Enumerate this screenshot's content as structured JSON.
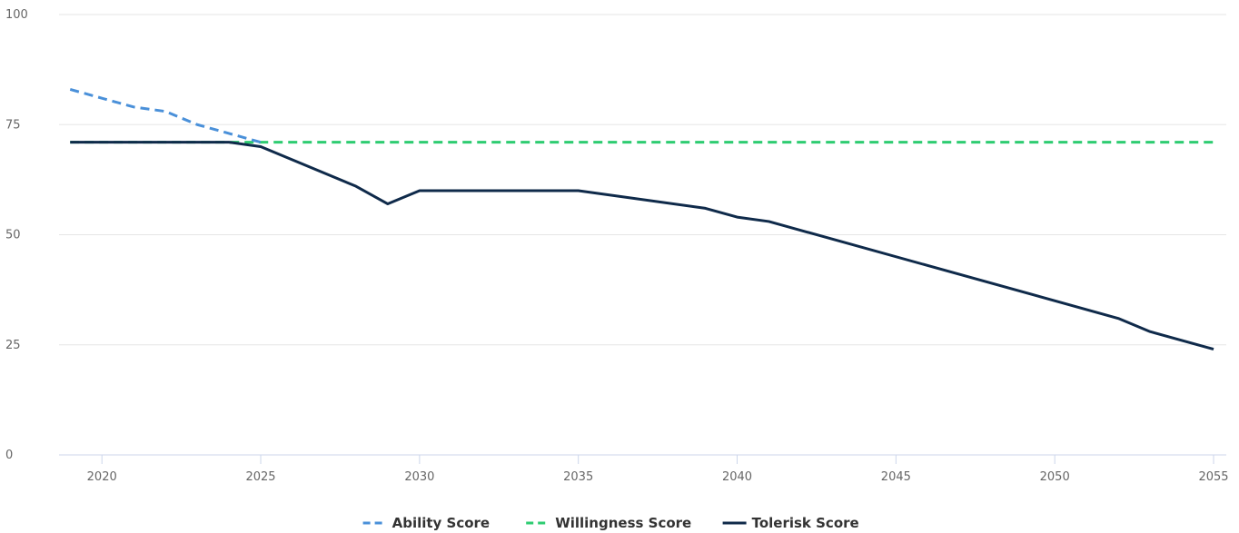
{
  "chart_data": {
    "type": "line",
    "x": [
      2019,
      2020,
      2021,
      2022,
      2023,
      2024,
      2025,
      2028,
      2029,
      2030,
      2035,
      2039,
      2040,
      2041,
      2052,
      2053,
      2055
    ],
    "series": [
      {
        "name": "Ability Score",
        "color": "#4a90d9",
        "dash": "dashed",
        "values": [
          83,
          81,
          79,
          78,
          75,
          73,
          71,
          null,
          null,
          null,
          null,
          null,
          null,
          null,
          null,
          null,
          null
        ]
      },
      {
        "name": "Willingness Score",
        "color": "#2ecc71",
        "dash": "dashed",
        "values": [
          71,
          71,
          71,
          71,
          71,
          71,
          71,
          71,
          71,
          71,
          71,
          71,
          71,
          71,
          71,
          71,
          71
        ]
      },
      {
        "name": "Tolerisk Score",
        "color": "#0f2a4a",
        "dash": "solid",
        "values": [
          71,
          71,
          71,
          71,
          71,
          71,
          70,
          61,
          57,
          60,
          60,
          56,
          54,
          53,
          31,
          28,
          24
        ]
      }
    ],
    "xlim": [
      2018.65,
      2055.4
    ],
    "xticks": [
      2020,
      2025,
      2030,
      2035,
      2040,
      2045,
      2050,
      2055
    ],
    "ylim": [
      0,
      100
    ],
    "yticks": [
      0,
      25,
      50,
      75,
      100
    ],
    "grid": true,
    "legend": "bottom"
  }
}
